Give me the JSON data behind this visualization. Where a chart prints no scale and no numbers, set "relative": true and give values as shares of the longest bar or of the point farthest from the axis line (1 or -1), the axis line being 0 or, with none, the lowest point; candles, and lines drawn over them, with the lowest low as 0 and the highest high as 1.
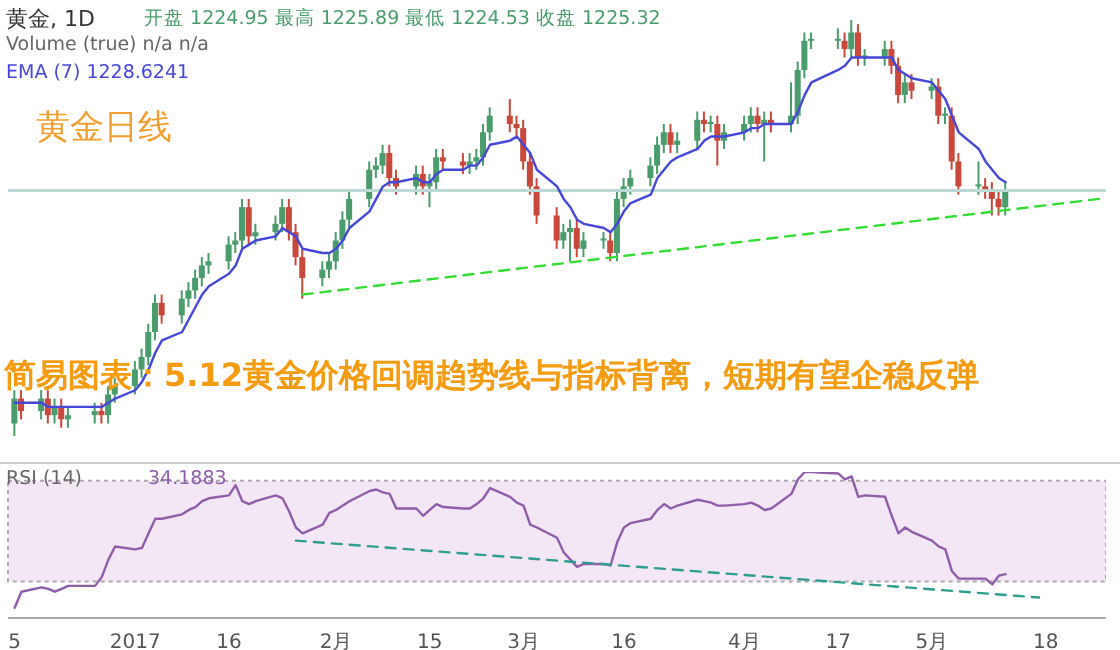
{
  "chart_data": [
    {
      "type": "candlestick",
      "title": "黄金, 1D",
      "subtitle": "黄金日线",
      "relative": true,
      "tick_labels": false,
      "annotations": [
        "开盘 1224.95 最高 1225.89 最低 1224.53 收盘 1225.32",
        "Volume (true) n/a n/a",
        "EMA (7) 1228.6241",
        "简易图表：5.12黄金价格回调趋势线与指标背离，短期有望企稳反弹"
      ],
      "x": [
        "2016-12-15",
        "2016-12-16",
        "2016-12-19",
        "2016-12-20",
        "2016-12-21",
        "2016-12-22",
        "2016-12-23",
        "2016-12-27",
        "2016-12-28",
        "2016-12-29",
        "2016-12-30",
        "2017-01-02",
        "2017-01-03",
        "2017-01-04",
        "2017-01-05",
        "2017-01-06",
        "2017-01-09",
        "2017-01-10",
        "2017-01-11",
        "2017-01-12",
        "2017-01-13",
        "2017-01-16",
        "2017-01-17",
        "2017-01-18",
        "2017-01-19",
        "2017-01-20",
        "2017-01-23",
        "2017-01-24",
        "2017-01-25",
        "2017-01-26",
        "2017-01-27",
        "2017-01-30",
        "2017-01-31",
        "2017-02-01",
        "2017-02-02",
        "2017-02-03",
        "2017-02-06",
        "2017-02-07",
        "2017-02-08",
        "2017-02-09",
        "2017-02-10",
        "2017-02-13",
        "2017-02-14",
        "2017-02-15",
        "2017-02-16",
        "2017-02-17",
        "2017-02-20",
        "2017-02-21",
        "2017-02-22",
        "2017-02-23",
        "2017-02-24",
        "2017-02-27",
        "2017-02-28",
        "2017-03-01",
        "2017-03-02",
        "2017-03-03",
        "2017-03-06",
        "2017-03-07",
        "2017-03-08",
        "2017-03-09",
        "2017-03-10",
        "2017-03-13",
        "2017-03-14",
        "2017-03-15",
        "2017-03-16",
        "2017-03-17",
        "2017-03-20",
        "2017-03-21",
        "2017-03-22",
        "2017-03-23",
        "2017-03-24",
        "2017-03-27",
        "2017-03-28",
        "2017-03-29",
        "2017-03-30",
        "2017-03-31",
        "2017-04-03",
        "2017-04-04",
        "2017-04-05",
        "2017-04-06",
        "2017-04-07",
        "2017-04-10",
        "2017-04-11",
        "2017-04-12",
        "2017-04-13",
        "2017-04-17",
        "2017-04-18",
        "2017-04-19",
        "2017-04-20",
        "2017-04-21",
        "2017-04-24",
        "2017-04-25",
        "2017-04-26",
        "2017-04-27",
        "2017-04-28",
        "2017-05-01",
        "2017-05-02",
        "2017-05-03",
        "2017-05-04",
        "2017-05-05",
        "2017-05-08",
        "2017-05-09",
        "2017-05-10",
        "2017-05-11",
        "2017-05-12"
      ],
      "xlim": [
        "2016-12-14",
        "2017-05-27"
      ],
      "ohlc": [
        [
          0.03,
          0.11,
          0.0,
          0.09
        ],
        [
          0.09,
          0.11,
          0.04,
          0.06
        ],
        [
          0.06,
          0.11,
          0.04,
          0.09
        ],
        [
          0.09,
          0.11,
          0.03,
          0.05
        ],
        [
          0.05,
          0.09,
          0.03,
          0.07
        ],
        [
          0.07,
          0.09,
          0.02,
          0.04
        ],
        [
          0.04,
          0.07,
          0.02,
          0.05
        ],
        [
          0.05,
          0.08,
          0.03,
          0.06
        ],
        [
          0.06,
          0.08,
          0.03,
          0.05
        ],
        [
          0.05,
          0.12,
          0.03,
          0.1
        ],
        [
          0.1,
          0.14,
          0.08,
          0.12
        ],
        [
          0.12,
          0.18,
          0.1,
          0.16
        ],
        [
          0.16,
          0.21,
          0.14,
          0.19
        ],
        [
          0.19,
          0.27,
          0.17,
          0.25
        ],
        [
          0.25,
          0.34,
          0.23,
          0.32
        ],
        [
          0.32,
          0.34,
          0.27,
          0.29
        ],
        [
          0.29,
          0.35,
          0.27,
          0.33
        ],
        [
          0.33,
          0.37,
          0.31,
          0.35
        ],
        [
          0.35,
          0.4,
          0.33,
          0.38
        ],
        [
          0.38,
          0.43,
          0.36,
          0.41
        ],
        [
          0.41,
          0.44,
          0.39,
          0.42
        ],
        [
          0.42,
          0.48,
          0.4,
          0.46
        ],
        [
          0.46,
          0.49,
          0.44,
          0.47
        ],
        [
          0.47,
          0.57,
          0.45,
          0.55
        ],
        [
          0.55,
          0.57,
          0.46,
          0.48
        ],
        [
          0.48,
          0.51,
          0.46,
          0.49
        ],
        [
          0.49,
          0.53,
          0.47,
          0.51
        ],
        [
          0.51,
          0.57,
          0.49,
          0.55
        ],
        [
          0.55,
          0.57,
          0.47,
          0.49
        ],
        [
          0.49,
          0.51,
          0.41,
          0.43
        ],
        [
          0.43,
          0.45,
          0.33,
          0.38
        ],
        [
          0.38,
          0.42,
          0.36,
          0.4
        ],
        [
          0.4,
          0.44,
          0.38,
          0.42
        ],
        [
          0.42,
          0.49,
          0.4,
          0.47
        ],
        [
          0.47,
          0.54,
          0.45,
          0.52
        ],
        [
          0.52,
          0.59,
          0.5,
          0.57
        ],
        [
          0.57,
          0.66,
          0.55,
          0.64
        ],
        [
          0.64,
          0.67,
          0.62,
          0.65
        ],
        [
          0.65,
          0.7,
          0.63,
          0.68
        ],
        [
          0.68,
          0.7,
          0.6,
          0.62
        ],
        [
          0.62,
          0.64,
          0.58,
          0.6
        ],
        [
          0.6,
          0.65,
          0.58,
          0.63
        ],
        [
          0.63,
          0.65,
          0.58,
          0.6
        ],
        [
          0.6,
          0.63,
          0.55,
          0.61
        ],
        [
          0.61,
          0.69,
          0.59,
          0.67
        ],
        [
          0.67,
          0.69,
          0.64,
          0.66
        ],
        [
          0.66,
          0.68,
          0.63,
          0.65
        ],
        [
          0.65,
          0.68,
          0.63,
          0.66
        ],
        [
          0.66,
          0.69,
          0.64,
          0.67
        ],
        [
          0.67,
          0.75,
          0.65,
          0.73
        ],
        [
          0.73,
          0.79,
          0.71,
          0.77
        ],
        [
          0.77,
          0.81,
          0.73,
          0.75
        ],
        [
          0.75,
          0.77,
          0.72,
          0.74
        ],
        [
          0.74,
          0.76,
          0.64,
          0.66
        ],
        [
          0.66,
          0.68,
          0.58,
          0.6
        ],
        [
          0.6,
          0.62,
          0.51,
          0.53
        ],
        [
          0.53,
          0.55,
          0.45,
          0.47
        ],
        [
          0.47,
          0.51,
          0.45,
          0.49
        ],
        [
          0.49,
          0.52,
          0.42,
          0.5
        ],
        [
          0.5,
          0.52,
          0.43,
          0.45
        ],
        [
          0.45,
          0.49,
          0.43,
          0.47
        ],
        [
          0.47,
          0.49,
          0.45,
          0.47
        ],
        [
          0.47,
          0.49,
          0.42,
          0.44
        ],
        [
          0.44,
          0.59,
          0.42,
          0.57
        ],
        [
          0.57,
          0.62,
          0.55,
          0.6
        ],
        [
          0.6,
          0.64,
          0.58,
          0.62
        ],
        [
          0.62,
          0.67,
          0.6,
          0.65
        ],
        [
          0.65,
          0.72,
          0.63,
          0.7
        ],
        [
          0.7,
          0.75,
          0.68,
          0.73
        ],
        [
          0.73,
          0.75,
          0.68,
          0.7
        ],
        [
          0.7,
          0.73,
          0.68,
          0.71
        ],
        [
          0.71,
          0.78,
          0.69,
          0.76
        ],
        [
          0.76,
          0.78,
          0.73,
          0.75
        ],
        [
          0.75,
          0.77,
          0.73,
          0.75
        ],
        [
          0.75,
          0.77,
          0.65,
          0.71
        ],
        [
          0.71,
          0.75,
          0.69,
          0.73
        ],
        [
          0.73,
          0.77,
          0.71,
          0.75
        ],
        [
          0.75,
          0.79,
          0.73,
          0.77
        ],
        [
          0.77,
          0.79,
          0.73,
          0.75
        ],
        [
          0.75,
          0.78,
          0.66,
          0.76
        ],
        [
          0.76,
          0.78,
          0.73,
          0.75
        ],
        [
          0.75,
          0.85,
          0.73,
          0.77
        ],
        [
          0.77,
          0.9,
          0.75,
          0.88
        ],
        [
          0.88,
          0.97,
          0.86,
          0.95
        ],
        [
          0.95,
          0.97,
          0.93,
          0.95
        ],
        [
          0.95,
          0.98,
          0.93,
          0.95
        ],
        [
          0.95,
          0.97,
          0.91,
          0.93
        ],
        [
          0.93,
          1.0,
          0.91,
          0.97
        ],
        [
          0.97,
          0.99,
          0.89,
          0.91
        ],
        [
          0.91,
          0.93,
          0.89,
          0.91
        ],
        [
          0.91,
          0.95,
          0.89,
          0.93
        ],
        [
          0.93,
          0.95,
          0.87,
          0.89
        ],
        [
          0.89,
          0.91,
          0.8,
          0.82
        ],
        [
          0.82,
          0.87,
          0.8,
          0.85
        ],
        [
          0.85,
          0.87,
          0.81,
          0.83
        ],
        [
          0.83,
          0.86,
          0.81,
          0.84
        ],
        [
          0.84,
          0.86,
          0.75,
          0.77
        ],
        [
          0.77,
          0.79,
          0.75,
          0.77
        ],
        [
          0.77,
          0.79,
          0.64,
          0.66
        ],
        [
          0.66,
          0.68,
          0.58,
          0.6
        ],
        [
          0.6,
          0.66,
          0.58,
          0.6
        ],
        [
          0.6,
          0.62,
          0.57,
          0.59
        ],
        [
          0.59,
          0.61,
          0.53,
          0.57
        ],
        [
          0.57,
          0.59,
          0.53,
          0.55
        ],
        [
          0.55,
          0.61,
          0.53,
          0.59
        ]
      ],
      "colors": [
        "#4a9c6d",
        "#c9483c",
        "#4a9c6d",
        "#c9483c",
        "#4a9c6d",
        "#c9483c",
        "#4a9c6d",
        "#4a9c6d",
        "#c9483c",
        "#4a9c6d",
        "#4a9c6d",
        "#4a9c6d",
        "#4a9c6d",
        "#4a9c6d",
        "#4a9c6d",
        "#c9483c",
        "#4a9c6d",
        "#4a9c6d",
        "#4a9c6d",
        "#4a9c6d",
        "#4a9c6d",
        "#4a9c6d",
        "#4a9c6d",
        "#4a9c6d",
        "#c9483c",
        "#4a9c6d",
        "#4a9c6d",
        "#4a9c6d",
        "#c9483c",
        "#c9483c",
        "#c9483c",
        "#4a9c6d",
        "#4a9c6d",
        "#4a9c6d",
        "#4a9c6d",
        "#4a9c6d",
        "#4a9c6d",
        "#4a9c6d",
        "#4a9c6d",
        "#c9483c",
        "#c9483c",
        "#4a9c6d",
        "#c9483c",
        "#4a9c6d",
        "#4a9c6d",
        "#c9483c",
        "#c9483c",
        "#4a9c6d",
        "#4a9c6d",
        "#4a9c6d",
        "#4a9c6d",
        "#c9483c",
        "#c9483c",
        "#c9483c",
        "#c9483c",
        "#c9483c",
        "#c9483c",
        "#4a9c6d",
        "#4a9c6d",
        "#c9483c",
        "#4a9c6d",
        "#4a9c6d",
        "#c9483c",
        "#4a9c6d",
        "#4a9c6d",
        "#4a9c6d",
        "#4a9c6d",
        "#4a9c6d",
        "#4a9c6d",
        "#c9483c",
        "#4a9c6d",
        "#4a9c6d",
        "#c9483c",
        "#4a9c6d",
        "#c9483c",
        "#4a9c6d",
        "#4a9c6d",
        "#4a9c6d",
        "#c9483c",
        "#4a9c6d",
        "#c9483c",
        "#4a9c6d",
        "#4a9c6d",
        "#4a9c6d",
        "#4a9c6d",
        "#4a9c6d",
        "#c9483c",
        "#4a9c6d",
        "#c9483c",
        "#4a9c6d",
        "#4a9c6d",
        "#c9483c",
        "#c9483c",
        "#4a9c6d",
        "#c9483c",
        "#4a9c6d",
        "#c9483c",
        "#4a9c6d",
        "#c9483c",
        "#c9483c",
        "#4a9c6d",
        "#c9483c",
        "#c9483c",
        "#c9483c",
        "#4a9c6d"
      ],
      "series": [
        {
          "type": "line",
          "color": "#4646d8",
          "values": [
            0.08,
            0.08,
            0.08,
            0.07,
            0.07,
            0.07,
            0.07,
            0.07,
            0.07,
            0.08,
            0.09,
            0.11,
            0.13,
            0.16,
            0.2,
            0.23,
            0.25,
            0.28,
            0.31,
            0.34,
            0.36,
            0.39,
            0.41,
            0.45,
            0.46,
            0.47,
            0.48,
            0.5,
            0.49,
            0.48,
            0.45,
            0.44,
            0.44,
            0.45,
            0.47,
            0.5,
            0.54,
            0.57,
            0.6,
            0.61,
            0.61,
            0.62,
            0.61,
            0.61,
            0.63,
            0.64,
            0.64,
            0.65,
            0.65,
            0.67,
            0.7,
            0.71,
            0.72,
            0.7,
            0.68,
            0.64,
            0.6,
            0.57,
            0.55,
            0.52,
            0.51,
            0.5,
            0.49,
            0.51,
            0.54,
            0.56,
            0.58,
            0.62,
            0.64,
            0.66,
            0.67,
            0.69,
            0.71,
            0.72,
            0.72,
            0.72,
            0.73,
            0.74,
            0.74,
            0.75,
            0.75,
            0.75,
            0.78,
            0.82,
            0.85,
            0.88,
            0.89,
            0.91,
            0.91,
            0.91,
            0.91,
            0.91,
            0.88,
            0.87,
            0.86,
            0.85,
            0.83,
            0.81,
            0.77,
            0.73,
            0.69,
            0.66,
            0.64,
            0.62,
            0.61
          ]
        },
        {
          "type": "line",
          "color": "#33dd33",
          "line_style": "dashed",
          "x": [
            "2017-01-27",
            "2017-05-26"
          ],
          "values": [
            0.34,
            0.57
          ]
        }
      ],
      "ref_lines": [
        {
          "axis": "y",
          "value": 0.59,
          "color": "#bcd9d6"
        }
      ]
    },
    {
      "type": "line",
      "title": "RSI (14)",
      "relative": true,
      "tick_labels": "x",
      "annotations": [
        "34.1883"
      ],
      "x": [
        "2016-12-15",
        "2016-12-16",
        "2016-12-19",
        "2016-12-20",
        "2016-12-21",
        "2016-12-22",
        "2016-12-23",
        "2016-12-27",
        "2016-12-28",
        "2016-12-29",
        "2016-12-30",
        "2017-01-02",
        "2017-01-03",
        "2017-01-04",
        "2017-01-05",
        "2017-01-06",
        "2017-01-09",
        "2017-01-10",
        "2017-01-11",
        "2017-01-12",
        "2017-01-13",
        "2017-01-16",
        "2017-01-17",
        "2017-01-18",
        "2017-01-19",
        "2017-01-20",
        "2017-01-23",
        "2017-01-24",
        "2017-01-25",
        "2017-01-26",
        "2017-01-27",
        "2017-01-30",
        "2017-01-31",
        "2017-02-01",
        "2017-02-02",
        "2017-02-03",
        "2017-02-06",
        "2017-02-07",
        "2017-02-08",
        "2017-02-09",
        "2017-02-10",
        "2017-02-13",
        "2017-02-14",
        "2017-02-15",
        "2017-02-16",
        "2017-02-17",
        "2017-02-20",
        "2017-02-21",
        "2017-02-22",
        "2017-02-23",
        "2017-02-24",
        "2017-02-27",
        "2017-02-28",
        "2017-03-01",
        "2017-03-02",
        "2017-03-03",
        "2017-03-06",
        "2017-03-07",
        "2017-03-08",
        "2017-03-09",
        "2017-03-10",
        "2017-03-13",
        "2017-03-14",
        "2017-03-15",
        "2017-03-16",
        "2017-03-17",
        "2017-03-20",
        "2017-03-21",
        "2017-03-22",
        "2017-03-23",
        "2017-03-24",
        "2017-03-27",
        "2017-03-28",
        "2017-03-29",
        "2017-03-30",
        "2017-03-31",
        "2017-04-03",
        "2017-04-04",
        "2017-04-05",
        "2017-04-06",
        "2017-04-07",
        "2017-04-10",
        "2017-04-11",
        "2017-04-12",
        "2017-04-13",
        "2017-04-17",
        "2017-04-18",
        "2017-04-19",
        "2017-04-20",
        "2017-04-21",
        "2017-04-24",
        "2017-04-25",
        "2017-04-26",
        "2017-04-27",
        "2017-04-28",
        "2017-05-01",
        "2017-05-02",
        "2017-05-03",
        "2017-05-04",
        "2017-05-05",
        "2017-05-08",
        "2017-05-09",
        "2017-05-10",
        "2017-05-11",
        "2017-05-12"
      ],
      "xlim": [
        "2016-12-14",
        "2017-05-27"
      ],
      "xticks": [
        {
          "value": "2016-12-15",
          "label": "5"
        },
        {
          "value": "2017-01-02",
          "label": "2017"
        },
        {
          "value": "2017-01-16",
          "label": "16"
        },
        {
          "value": "2017-02-01",
          "label": "2月"
        },
        {
          "value": "2017-02-15",
          "label": "15"
        },
        {
          "value": "2017-03-01",
          "label": "3月"
        },
        {
          "value": "2017-03-16",
          "label": "16"
        },
        {
          "value": "2017-04-03",
          "label": "4月"
        },
        {
          "value": "2017-04-17",
          "label": "17"
        },
        {
          "value": "2017-05-01",
          "label": "5月"
        },
        {
          "value": "2017-05-18",
          "label": "18"
        }
      ],
      "series": [
        {
          "type": "line",
          "color": "#8e5ea8",
          "values": [
            0.07,
            0.18,
            0.21,
            0.2,
            0.18,
            0.2,
            0.22,
            0.22,
            0.28,
            0.4,
            0.49,
            0.47,
            0.48,
            0.58,
            0.68,
            0.68,
            0.71,
            0.74,
            0.76,
            0.8,
            0.82,
            0.84,
            0.91,
            0.8,
            0.78,
            0.8,
            0.84,
            0.82,
            0.73,
            0.62,
            0.58,
            0.64,
            0.72,
            0.74,
            0.77,
            0.8,
            0.87,
            0.88,
            0.86,
            0.85,
            0.75,
            0.75,
            0.7,
            0.74,
            0.78,
            0.76,
            0.75,
            0.75,
            0.78,
            0.82,
            0.89,
            0.83,
            0.79,
            0.77,
            0.64,
            0.62,
            0.55,
            0.45,
            0.4,
            0.35,
            0.37,
            0.37,
            0.36,
            0.52,
            0.62,
            0.65,
            0.68,
            0.74,
            0.78,
            0.75,
            0.77,
            0.81,
            0.8,
            0.79,
            0.77,
            0.77,
            0.78,
            0.79,
            0.77,
            0.74,
            0.75,
            0.85,
            0.95,
            1.0,
            1.0,
            0.99,
            0.95,
            0.97,
            0.83,
            0.84,
            0.83,
            0.7,
            0.58,
            0.62,
            0.59,
            0.53,
            0.49,
            0.47,
            0.32,
            0.27,
            0.27,
            0.27,
            0.23,
            0.29,
            0.3
          ]
        },
        {
          "type": "line",
          "color": "#2f9e8f",
          "line_style": "dashed",
          "x": [
            "2017-01-26",
            "2017-05-17"
          ],
          "values": [
            0.53,
            0.14
          ]
        }
      ],
      "bands": [
        {
          "axis": "y",
          "from": 0.25,
          "to": 0.94,
          "color": "#f3e6f5"
        }
      ]
    }
  ]
}
